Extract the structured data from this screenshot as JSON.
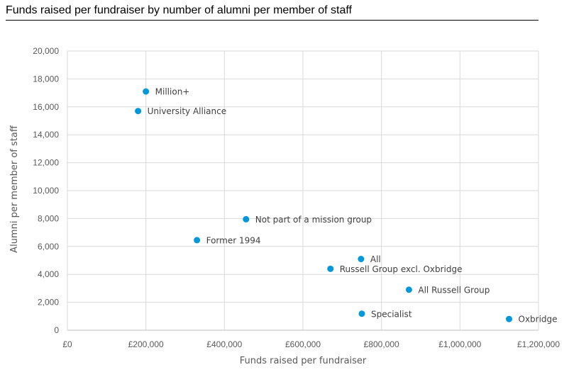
{
  "chart_data": {
    "type": "scatter",
    "title": "Funds raised per fundraiser by number of alumni per member of staff",
    "xlabel": "Funds raised per fundraiser",
    "ylabel": "Alumni per member of staff",
    "xlim": [
      0,
      1200000
    ],
    "ylim": [
      0,
      20000
    ],
    "x_ticks": [
      0,
      200000,
      400000,
      600000,
      800000,
      1000000,
      1200000
    ],
    "x_tick_labels": [
      "£0",
      "£200,000",
      "£400,000",
      "£600,000",
      "£800,000",
      "£1,000,000",
      "£1,200,000"
    ],
    "y_ticks": [
      0,
      2000,
      4000,
      6000,
      8000,
      10000,
      12000,
      14000,
      16000,
      18000,
      20000
    ],
    "y_tick_labels": [
      "0",
      "2,000",
      "4,000",
      "6,000",
      "8,000",
      "10,000",
      "12,000",
      "14,000",
      "16,000",
      "18,000",
      "20,000"
    ],
    "grid": true,
    "marker_color": "#0098db",
    "points": [
      {
        "label": "Million+",
        "x": 200000,
        "y": 17100
      },
      {
        "label": "University Alliance",
        "x": 180000,
        "y": 15700
      },
      {
        "label": "Not part of a mission group",
        "x": 455000,
        "y": 7950
      },
      {
        "label": "Former 1994",
        "x": 330000,
        "y": 6450
      },
      {
        "label": "All",
        "x": 748000,
        "y": 5100
      },
      {
        "label": "Russell Group excl. Oxbridge",
        "x": 670000,
        "y": 4400
      },
      {
        "label": "All Russell Group",
        "x": 870000,
        "y": 2900
      },
      {
        "label": "Specialist",
        "x": 750000,
        "y": 1180
      },
      {
        "label": "Oxbridge",
        "x": 1125000,
        "y": 800
      }
    ]
  }
}
